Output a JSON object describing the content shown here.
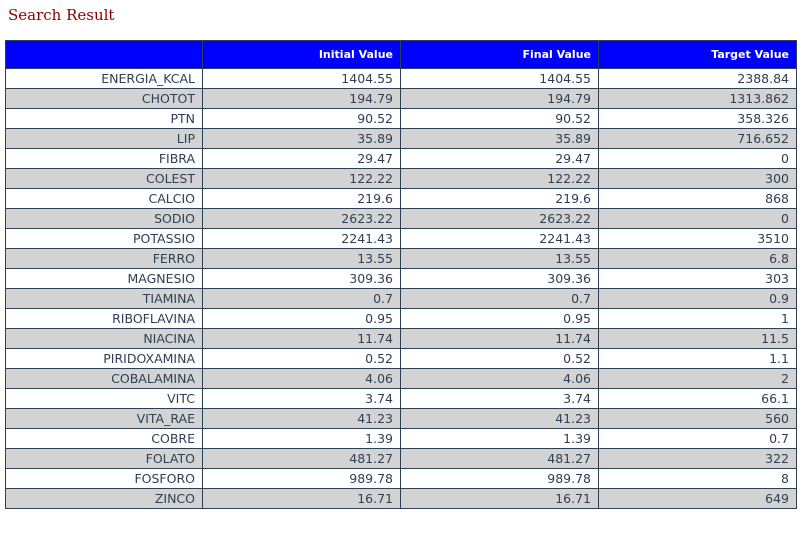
{
  "page": {
    "title": "Search Result"
  },
  "table": {
    "headers": [
      "",
      "Initial Value",
      "Final Value",
      "Target Value"
    ],
    "rows": [
      [
        "ENERGIA_KCAL",
        "1404.55",
        "1404.55",
        "2388.84"
      ],
      [
        "CHOTOT",
        "194.79",
        "194.79",
        "1313.862"
      ],
      [
        "PTN",
        "90.52",
        "90.52",
        "358.326"
      ],
      [
        "LIP",
        "35.89",
        "35.89",
        "716.652"
      ],
      [
        "FIBRA",
        "29.47",
        "29.47",
        "0"
      ],
      [
        "COLEST",
        "122.22",
        "122.22",
        "300"
      ],
      [
        "CALCIO",
        "219.6",
        "219.6",
        "868"
      ],
      [
        "SODIO",
        "2623.22",
        "2623.22",
        "0"
      ],
      [
        "POTASSIO",
        "2241.43",
        "2241.43",
        "3510"
      ],
      [
        "FERRO",
        "13.55",
        "13.55",
        "6.8"
      ],
      [
        "MAGNESIO",
        "309.36",
        "309.36",
        "303"
      ],
      [
        "TIAMINA",
        "0.7",
        "0.7",
        "0.9"
      ],
      [
        "RIBOFLAVINA",
        "0.95",
        "0.95",
        "1"
      ],
      [
        "NIACINA",
        "11.74",
        "11.74",
        "11.5"
      ],
      [
        "PIRIDOXAMINA",
        "0.52",
        "0.52",
        "1.1"
      ],
      [
        "COBALAMINA",
        "4.06",
        "4.06",
        "2"
      ],
      [
        "VITC",
        "3.74",
        "3.74",
        "66.1"
      ],
      [
        "VITA_RAE",
        "41.23",
        "41.23",
        "560"
      ],
      [
        "COBRE",
        "1.39",
        "1.39",
        "0.7"
      ],
      [
        "FOLATO",
        "481.27",
        "481.27",
        "322"
      ],
      [
        "FOSFORO",
        "989.78",
        "989.78",
        "8"
      ],
      [
        "ZINCO",
        "16.71",
        "16.71",
        "649"
      ]
    ]
  },
  "colors": {
    "header_background": "#0000ff",
    "header_text": "#ffffff",
    "title_text": "#8b0000",
    "alt_row": "#d3d3d3",
    "cell_text": "#2f3f55"
  }
}
